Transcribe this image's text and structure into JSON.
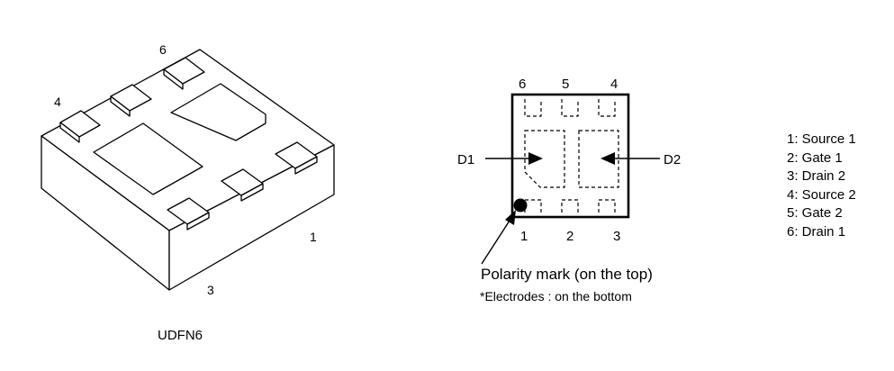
{
  "package_view": {
    "pin_labels": {
      "p6": "6",
      "p4": "4",
      "p1": "1",
      "p3": "3"
    },
    "caption": "UDFN6"
  },
  "top_view": {
    "pin_numbers_top": [
      "6",
      "5",
      "4"
    ],
    "pin_numbers_bottom": [
      "1",
      "2",
      "3"
    ],
    "die_label_left": "D1",
    "die_label_right": "D2",
    "polarity_text": "Polarity mark (on the top)",
    "electrodes_note": "*Electrodes : on the bottom"
  },
  "pin_legend": [
    "1: Source 1",
    "2: Gate 1",
    "3: Drain 2",
    "4: Source 2",
    "5: Gate 2",
    "6: Drain 1"
  ]
}
